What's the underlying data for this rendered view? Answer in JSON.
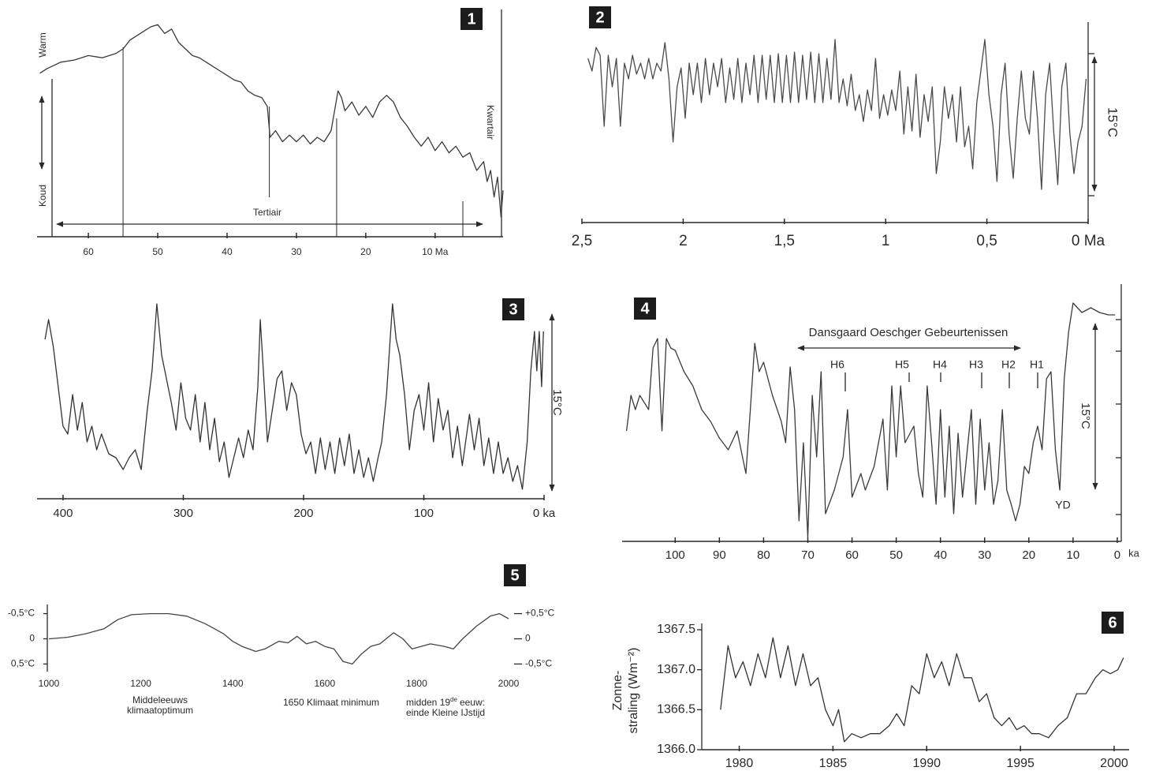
{
  "chart_data": [
    {
      "type": "line",
      "panel": "1",
      "x": [
        67,
        66,
        64,
        62,
        60,
        58,
        56,
        55,
        54,
        53,
        52,
        51,
        50,
        49,
        48,
        47,
        46,
        45,
        44,
        43,
        42,
        41,
        40,
        39,
        38,
        37,
        36,
        35,
        34.2,
        33.8,
        33,
        32,
        31,
        30,
        29,
        28,
        27,
        26,
        25,
        24.5,
        24,
        23.5,
        23,
        22,
        21,
        20,
        19,
        18,
        17,
        16,
        15,
        14,
        13,
        12,
        11,
        10,
        9,
        8,
        7,
        6,
        5,
        4,
        3,
        2.5,
        2,
        1.5,
        1,
        0.5,
        0.2
      ],
      "series": [
        {
          "color": "#3a3a3a",
          "values": [
            7.4,
            7.6,
            7.9,
            8.0,
            8.2,
            8.1,
            8.3,
            8.5,
            8.9,
            9.1,
            9.3,
            9.5,
            9.6,
            9.2,
            9.4,
            8.8,
            8.5,
            8.2,
            8.1,
            7.9,
            7.7,
            7.5,
            7.3,
            7.1,
            7.0,
            6.6,
            6.4,
            6.3,
            5.9,
            4.5,
            4.8,
            4.3,
            4.6,
            4.3,
            4.6,
            4.2,
            4.5,
            4.3,
            4.8,
            5.7,
            6.6,
            6.3,
            5.7,
            6.1,
            5.5,
            5.9,
            5.4,
            6.1,
            6.4,
            6.1,
            5.4,
            5.0,
            4.5,
            4.1,
            4.5,
            3.9,
            4.3,
            3.8,
            4.1,
            3.6,
            3.8,
            3.0,
            3.4,
            2.5,
            3.0,
            1.8,
            2.7,
            0.9,
            2.1
          ]
        }
      ],
      "boundaries": [
        55,
        33.9,
        24.2,
        6
      ],
      "xlim": [
        67.4,
        0.2
      ],
      "xticks": [
        60,
        50,
        40,
        30,
        20,
        {
          "value": 10,
          "label": "10 Ma"
        }
      ],
      "ylim": [
        0,
        10
      ],
      "annotations": [
        "Warm",
        "Koud",
        "Tertiair",
        "Kwartair"
      ]
    },
    {
      "type": "line",
      "panel": "2",
      "x": [
        2.47,
        2.45,
        2.43,
        2.41,
        2.39,
        2.37,
        2.35,
        2.33,
        2.31,
        2.29,
        2.27,
        2.25,
        2.23,
        2.21,
        2.19,
        2.17,
        2.15,
        2.13,
        2.11,
        2.09,
        2.07,
        2.05,
        2.03,
        2.01,
        1.99,
        1.97,
        1.95,
        1.93,
        1.91,
        1.89,
        1.87,
        1.85,
        1.83,
        1.81,
        1.79,
        1.77,
        1.75,
        1.73,
        1.71,
        1.69,
        1.67,
        1.65,
        1.63,
        1.61,
        1.59,
        1.57,
        1.55,
        1.53,
        1.51,
        1.49,
        1.47,
        1.45,
        1.43,
        1.41,
        1.39,
        1.37,
        1.35,
        1.33,
        1.31,
        1.29,
        1.27,
        1.25,
        1.23,
        1.21,
        1.19,
        1.17,
        1.15,
        1.13,
        1.11,
        1.09,
        1.07,
        1.05,
        1.03,
        1.01,
        0.99,
        0.97,
        0.95,
        0.93,
        0.91,
        0.89,
        0.87,
        0.85,
        0.83,
        0.81,
        0.79,
        0.77,
        0.75,
        0.73,
        0.71,
        0.69,
        0.67,
        0.65,
        0.63,
        0.61,
        0.59,
        0.57,
        0.55,
        0.53,
        0.51,
        0.49,
        0.47,
        0.45,
        0.43,
        0.41,
        0.39,
        0.37,
        0.35,
        0.33,
        0.31,
        0.29,
        0.27,
        0.25,
        0.23,
        0.21,
        0.19,
        0.17,
        0.15,
        0.13,
        0.11,
        0.09,
        0.07,
        0.05,
        0.03,
        0.01
      ],
      "series": [
        {
          "color": "#4a4a4a",
          "values": [
            8.8,
            8.0,
            9.5,
            9.0,
            4.5,
            9.0,
            7.0,
            8.8,
            4.5,
            8.5,
            7.5,
            9.0,
            7.8,
            8.5,
            7.5,
            8.8,
            7.5,
            8.5,
            8.0,
            9.8,
            7.5,
            3.5,
            7.0,
            8.2,
            5.0,
            8.5,
            6.5,
            8.5,
            6.0,
            8.8,
            6.5,
            8.5,
            7.0,
            8.8,
            6.0,
            8.2,
            6.2,
            8.8,
            6.0,
            8.5,
            6.5,
            9.0,
            6.0,
            9.0,
            6.2,
            9.0,
            6.0,
            9.1,
            6.0,
            9.0,
            6.0,
            9.2,
            6.0,
            9.0,
            6.2,
            9.2,
            6.0,
            9.1,
            6.0,
            8.8,
            6.2,
            10.0,
            6.0,
            7.5,
            5.8,
            7.8,
            5.5,
            6.5,
            4.8,
            6.8,
            5.5,
            8.8,
            5.0,
            6.5,
            5.2,
            6.8,
            5.5,
            8.0,
            4.0,
            7.0,
            4.2,
            7.8,
            3.8,
            6.5,
            4.8,
            7.0,
            1.5,
            3.5,
            7.0,
            5.0,
            6.5,
            3.5,
            7.0,
            3.2,
            4.5,
            1.8,
            6.0,
            8.0,
            10.0,
            6.5,
            4.5,
            1.0,
            6.5,
            8.5,
            4.0,
            1.2,
            5.0,
            8.0,
            5.0,
            4.0,
            8.0,
            5.0,
            0.5,
            6.5,
            8.5,
            4.2,
            0.8,
            7.0,
            8.5,
            4.0,
            1.5,
            3.5,
            4.5,
            7.5
          ]
        }
      ],
      "xlim": [
        2.5,
        0
      ],
      "xticks": [
        {
          "value": 2.5,
          "label": "2,5"
        },
        2,
        {
          "value": 1.5,
          "label": "1,5"
        },
        1,
        {
          "value": 0.5,
          "label": "0,5"
        },
        {
          "value": 0,
          "label": "0 Ma"
        }
      ],
      "ylim": [
        0,
        10
      ],
      "annotations": [
        "15°C"
      ]
    },
    {
      "type": "line",
      "panel": "3",
      "x": [
        415,
        412,
        408,
        404,
        400,
        396,
        392,
        388,
        384,
        380,
        376,
        372,
        368,
        362,
        356,
        350,
        345,
        340,
        335,
        330,
        326,
        322,
        318,
        314,
        310,
        306,
        302,
        298,
        294,
        290,
        286,
        282,
        278,
        274,
        270,
        266,
        262,
        258,
        254,
        250,
        246,
        242,
        238,
        236,
        233,
        230,
        226,
        222,
        218,
        214,
        210,
        206,
        202,
        198,
        194,
        190,
        186,
        182,
        178,
        174,
        170,
        166,
        162,
        158,
        154,
        150,
        146,
        142,
        138,
        135,
        131,
        128,
        126,
        123,
        120,
        116,
        112,
        108,
        104,
        100,
        96,
        92,
        88,
        84,
        80,
        76,
        72,
        68,
        62,
        58,
        54,
        50,
        46,
        42,
        38,
        34,
        30,
        26,
        22,
        18,
        14,
        11,
        8,
        6,
        4,
        2,
        0.5
      ],
      "series": [
        {
          "color": "#333333",
          "values": [
            8.0,
            9.0,
            7.6,
            5.6,
            3.6,
            3.2,
            5.2,
            3.4,
            4.8,
            2.8,
            3.6,
            2.4,
            3.2,
            2.2,
            2.0,
            1.4,
            2.0,
            2.4,
            1.4,
            4.4,
            6.4,
            9.8,
            7.2,
            6.0,
            4.8,
            3.4,
            5.8,
            4.0,
            3.4,
            5.2,
            2.8,
            4.8,
            2.4,
            4.0,
            1.8,
            2.8,
            1.0,
            2.0,
            3.0,
            2.0,
            3.4,
            2.4,
            5.6,
            9.0,
            6.0,
            2.8,
            4.4,
            6.0,
            6.4,
            4.4,
            5.8,
            5.2,
            3.2,
            2.2,
            2.8,
            1.2,
            3.0,
            1.4,
            2.8,
            1.2,
            3.0,
            1.6,
            3.2,
            1.2,
            2.4,
            1.0,
            2.0,
            0.8,
            2.0,
            2.8,
            5.2,
            8.0,
            9.8,
            8.0,
            7.2,
            5.2,
            2.4,
            4.4,
            5.2,
            3.4,
            5.8,
            2.8,
            5.0,
            3.4,
            4.4,
            2.0,
            3.6,
            1.6,
            4.2,
            2.4,
            4.0,
            1.6,
            3.0,
            1.2,
            2.8,
            1.2,
            2.0,
            0.8,
            1.6,
            0.4,
            2.8,
            6.4,
            8.4,
            6.4,
            8.4,
            5.6,
            8.4
          ]
        }
      ],
      "xlim": [
        421.6,
        0
      ],
      "xticks": [
        400,
        300,
        200,
        100,
        {
          "value": 0,
          "label": "0 ka"
        }
      ],
      "ylim": [
        0,
        10
      ],
      "annotations": [
        "15°C"
      ]
    },
    {
      "type": "line",
      "panel": "4",
      "x": [
        111,
        110,
        109,
        108,
        106,
        105,
        104,
        103,
        102,
        101,
        100,
        98,
        96,
        94,
        92,
        90,
        88,
        86,
        84,
        83,
        82,
        81,
        80,
        78,
        76,
        75,
        74,
        73,
        72,
        71,
        70,
        69,
        68,
        67,
        66,
        64,
        62,
        61,
        60,
        58,
        57,
        55,
        53,
        52,
        51,
        50,
        49,
        48,
        46,
        45,
        44,
        43,
        42,
        41,
        40,
        39,
        38,
        37,
        36,
        35,
        33,
        32,
        31,
        30,
        29,
        28,
        27,
        26,
        25,
        24,
        23,
        22,
        21,
        20,
        19,
        18,
        17,
        16,
        15,
        14,
        13,
        12,
        11,
        10,
        9,
        8,
        6,
        4,
        2,
        0.5
      ],
      "series": [
        {
          "color": "#3a3a3a",
          "values": [
            4.8,
            6.3,
            5.7,
            6.3,
            5.7,
            8.3,
            8.7,
            4.8,
            8.7,
            8.3,
            8.2,
            7.3,
            6.7,
            5.7,
            5.2,
            4.5,
            4.0,
            4.8,
            3.0,
            5.7,
            8.5,
            7.3,
            7.7,
            6.3,
            5.2,
            4.3,
            7.5,
            5.7,
            1.0,
            4.3,
            0.3,
            6.3,
            3.7,
            7.3,
            1.3,
            2.3,
            3.7,
            5.7,
            2.0,
            3.0,
            2.3,
            3.3,
            5.3,
            2.3,
            6.7,
            3.7,
            6.7,
            4.3,
            5.0,
            3.0,
            2.0,
            6.7,
            4.3,
            1.7,
            5.7,
            2.0,
            5.0,
            1.3,
            4.7,
            2.0,
            5.7,
            1.7,
            5.3,
            2.3,
            4.3,
            1.7,
            2.7,
            5.7,
            2.3,
            1.7,
            1.0,
            1.7,
            3.3,
            3.0,
            4.3,
            5.0,
            4.0,
            7.0,
            7.3,
            4.0,
            2.3,
            7.0,
            9.0,
            10.2,
            10.0,
            9.8,
            10.0,
            9.8,
            9.7,
            9.7
          ]
        }
      ],
      "xlim": [
        112,
        -0.9
      ],
      "xticks": [
        100,
        90,
        80,
        70,
        60,
        50,
        40,
        30,
        20,
        10,
        0
      ],
      "xlabel": "ka",
      "ylim": [
        0,
        10.5
      ],
      "annotations": [
        "Dansgaard Oeschger Gebeurtenissen",
        "H6",
        "H5",
        "H4",
        "H3",
        "H2",
        "H1",
        "YD",
        "15°C"
      ]
    },
    {
      "type": "line",
      "panel": "5",
      "x": [
        1000,
        1040,
        1080,
        1120,
        1150,
        1180,
        1220,
        1260,
        1300,
        1340,
        1380,
        1400,
        1420,
        1450,
        1470,
        1500,
        1520,
        1540,
        1560,
        1580,
        1600,
        1620,
        1640,
        1660,
        1680,
        1700,
        1720,
        1750,
        1770,
        1790,
        1810,
        1830,
        1860,
        1880,
        1900,
        1930,
        1960,
        1980,
        2000
      ],
      "series": [
        {
          "color": "#444444",
          "axis": "y2",
          "values": [
            0,
            0.03,
            0.1,
            0.2,
            0.38,
            0.48,
            0.5,
            0.5,
            0.45,
            0.3,
            0.1,
            -0.05,
            -0.15,
            -0.25,
            -0.2,
            -0.05,
            -0.08,
            0.05,
            -0.1,
            -0.05,
            -0.15,
            -0.2,
            -0.45,
            -0.5,
            -0.3,
            -0.15,
            -0.1,
            0.12,
            0,
            -0.2,
            -0.15,
            -0.1,
            -0.15,
            -0.2,
            0,
            0.25,
            0.45,
            0.5,
            0.4
          ]
        }
      ],
      "xlim": [
        1000,
        2000
      ],
      "xticks": [
        1000,
        1200,
        1400,
        1600,
        1800,
        2000
      ],
      "ylim": [
        0.65,
        -0.65
      ],
      "yticks": [
        {
          "value": -0.5,
          "label": "-0,5°C"
        },
        0,
        {
          "value": 0.5,
          "label": "0,5°C"
        }
      ],
      "y2lim": [
        -0.65,
        0.65
      ],
      "y2ticks": [
        {
          "value": 0.5,
          "label": "+0,5°C"
        },
        0,
        {
          "value": -0.5,
          "label": "-0,5°C"
        }
      ],
      "annotations": [
        "Middeleeuws",
        "klimaatoptimum",
        "1650 Klimaat minimum",
        "midden 19",
        "de",
        "eeuw:",
        "einde Kleine IJstijd"
      ]
    },
    {
      "type": "line",
      "panel": "6",
      "x": [
        1979,
        1979.4,
        1979.8,
        1980.2,
        1980.6,
        1981,
        1981.4,
        1981.8,
        1982.2,
        1982.6,
        1983,
        1983.4,
        1983.8,
        1984.2,
        1984.6,
        1985,
        1985.3,
        1985.6,
        1986,
        1986.5,
        1987,
        1987.5,
        1988,
        1988.4,
        1988.8,
        1989.2,
        1989.6,
        1990,
        1990.4,
        1990.8,
        1991.2,
        1991.6,
        1992,
        1992.4,
        1992.8,
        1993.2,
        1993.6,
        1994,
        1994.4,
        1994.8,
        1995.2,
        1995.6,
        1996,
        1996.5,
        1997,
        1997.5,
        1998,
        1998.5,
        1999,
        1999.4,
        1999.8,
        2000.2,
        2000.5
      ],
      "series": [
        {
          "color": "#333333",
          "values": [
            1366.5,
            1367.3,
            1366.9,
            1367.1,
            1366.8,
            1367.2,
            1366.9,
            1367.4,
            1366.9,
            1367.3,
            1366.8,
            1367.2,
            1366.8,
            1366.9,
            1366.5,
            1366.3,
            1366.5,
            1366.1,
            1366.2,
            1366.15,
            1366.2,
            1366.2,
            1366.3,
            1366.45,
            1366.3,
            1366.8,
            1366.7,
            1367.2,
            1366.9,
            1367.1,
            1366.8,
            1367.2,
            1366.9,
            1366.9,
            1366.6,
            1366.7,
            1366.4,
            1366.3,
            1366.4,
            1366.25,
            1366.3,
            1366.2,
            1366.2,
            1366.15,
            1366.3,
            1366.4,
            1366.7,
            1366.7,
            1366.9,
            1367.0,
            1366.95,
            1367.0,
            1367.15
          ]
        }
      ],
      "xlim": [
        1978,
        2000.8
      ],
      "xticks": [
        1980,
        1985,
        1990,
        1995,
        2000
      ],
      "ylim": [
        1366,
        1367.5
      ],
      "yticks": [
        {
          "value": 1366,
          "label": "1366.0"
        },
        1366.5,
        {
          "value": 1367,
          "label": "1367.0"
        },
        1367.5
      ],
      "ylabel": [
        "Zonne-",
        "straling (Wm⁻²)"
      ],
      "annotations": []
    }
  ]
}
